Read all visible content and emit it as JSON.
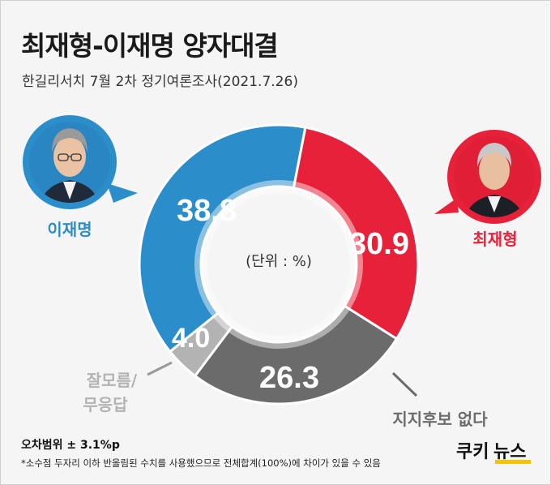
{
  "title": "최재형-이재명 양자대결",
  "subtitle": "한길리서치 7월 2차 정기여론조사(2021.7.26)",
  "chart_data": {
    "type": "pie",
    "style": "donut",
    "unit_label": "(단위 : %)",
    "slices": [
      {
        "name": "최재형",
        "value": 30.9,
        "color": "#e8213a"
      },
      {
        "name": "지지후보 없다",
        "value": 26.3,
        "color": "#6b6b6b"
      },
      {
        "name": "잘모름/ 무응답",
        "value": 4.0,
        "color": "#b3b3b3"
      },
      {
        "name": "이재명",
        "value": 38.8,
        "color": "#2b8ecb"
      }
    ],
    "value_labels": [
      "30.9",
      "26.3",
      "4.0",
      "38.8"
    ],
    "legend": {
      "lee": "이재명",
      "choi": "최재형",
      "none": "지지후보 없다",
      "dk_line1": "잘모름/",
      "dk_line2": "무응답"
    }
  },
  "footer": {
    "margin": "오차범위 ± 3.1%p",
    "note": "*소수점 두자리 이하 반올림된 수치를 사용했으므로 전체합계(100%)에 차이가 있을 수 있음"
  },
  "logo": {
    "text1": "쿠키",
    "text2": "뉴스"
  },
  "colors": {
    "lee": "#2b8ecb",
    "choi": "#e8213a",
    "none": "#6b6b6b",
    "dk": "#b3b3b3",
    "logo_yellow": "#f5c400"
  },
  "icons": {
    "lee_portrait": "person-portrait-icon",
    "choi_portrait": "person-portrait-icon"
  }
}
